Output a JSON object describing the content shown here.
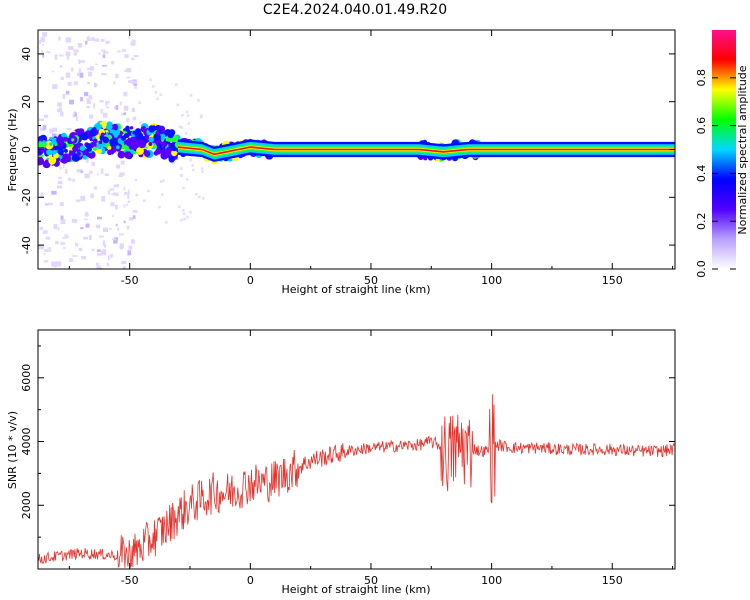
{
  "title": "C2E4.2024.040.01.49.R20",
  "colors": {
    "snr_line": "#e8302a",
    "axis": "#000000",
    "background": "#ffffff"
  },
  "chart_data": [
    {
      "type": "heatmap",
      "xlabel": "Height of straight line (km)",
      "ylabel": "Frequency (Hz)",
      "xlim": [
        -88,
        176
      ],
      "ylim": [
        -50,
        50
      ],
      "xticks": [
        -50,
        0,
        50,
        100,
        150
      ],
      "yticks": [
        -40,
        -20,
        0,
        20,
        40
      ],
      "colorbar": {
        "label": "Normalized spectral amplitude",
        "range": [
          0,
          1
        ],
        "ticks": [
          "0.0",
          "0.2",
          "0.4",
          "0.6",
          "0.8"
        ],
        "colormap": [
          "#ffffff",
          "#b8a0ff",
          "#5000ff",
          "#0000ff",
          "#00d8ff",
          "#00ff00",
          "#ffff00",
          "#ff0000",
          "#ff1090"
        ]
      },
      "ridge": [
        {
          "x": -88,
          "f": 0
        },
        {
          "x": -80,
          "f": -1
        },
        {
          "x": -70,
          "f": 2
        },
        {
          "x": -60,
          "f": 5
        },
        {
          "x": -50,
          "f": 3
        },
        {
          "x": -40,
          "f": 4
        },
        {
          "x": -30,
          "f": 1
        },
        {
          "x": -20,
          "f": 0
        },
        {
          "x": -15,
          "f": -2
        },
        {
          "x": -10,
          "f": -1
        },
        {
          "x": 0,
          "f": 1
        },
        {
          "x": 10,
          "f": 0
        },
        {
          "x": 70,
          "f": 0
        },
        {
          "x": 80,
          "f": -1
        },
        {
          "x": 90,
          "f": 0
        },
        {
          "x": 176,
          "f": 0
        }
      ]
    },
    {
      "type": "line",
      "xlabel": "Height of straight line (km)",
      "ylabel": "SNR (10 * v/v)",
      "xlim": [
        -88,
        176
      ],
      "ylim": [
        0,
        7500
      ],
      "xticks": [
        -50,
        0,
        50,
        100,
        150
      ],
      "yticks": [
        2000,
        4000,
        6000
      ],
      "series": [
        {
          "x": [
            -88,
            -80,
            -70,
            -60,
            -50,
            -45,
            -40,
            -35,
            -30,
            -25,
            -20,
            -15,
            -10,
            -5,
            0,
            5,
            10,
            15,
            20,
            25,
            30,
            35,
            40,
            50,
            60,
            70,
            75,
            78,
            80,
            82,
            84,
            86,
            88,
            90,
            92,
            95,
            98,
            100,
            102,
            105,
            110,
            120,
            130,
            140,
            150,
            160,
            170,
            176
          ],
          "values": [
            300,
            400,
            500,
            450,
            400,
            700,
            1000,
            1300,
            1700,
            2000,
            2200,
            2400,
            2400,
            2500,
            2700,
            2700,
            2800,
            3000,
            3200,
            3400,
            3500,
            3600,
            3700,
            3800,
            3850,
            3900,
            4000,
            3900,
            3700,
            3600,
            3700,
            3800,
            3900,
            3700,
            3800,
            3700,
            3700,
            3850,
            3900,
            3850,
            3800,
            3800,
            3750,
            3750,
            3750,
            3700,
            3700,
            3750
          ]
        }
      ]
    }
  ]
}
